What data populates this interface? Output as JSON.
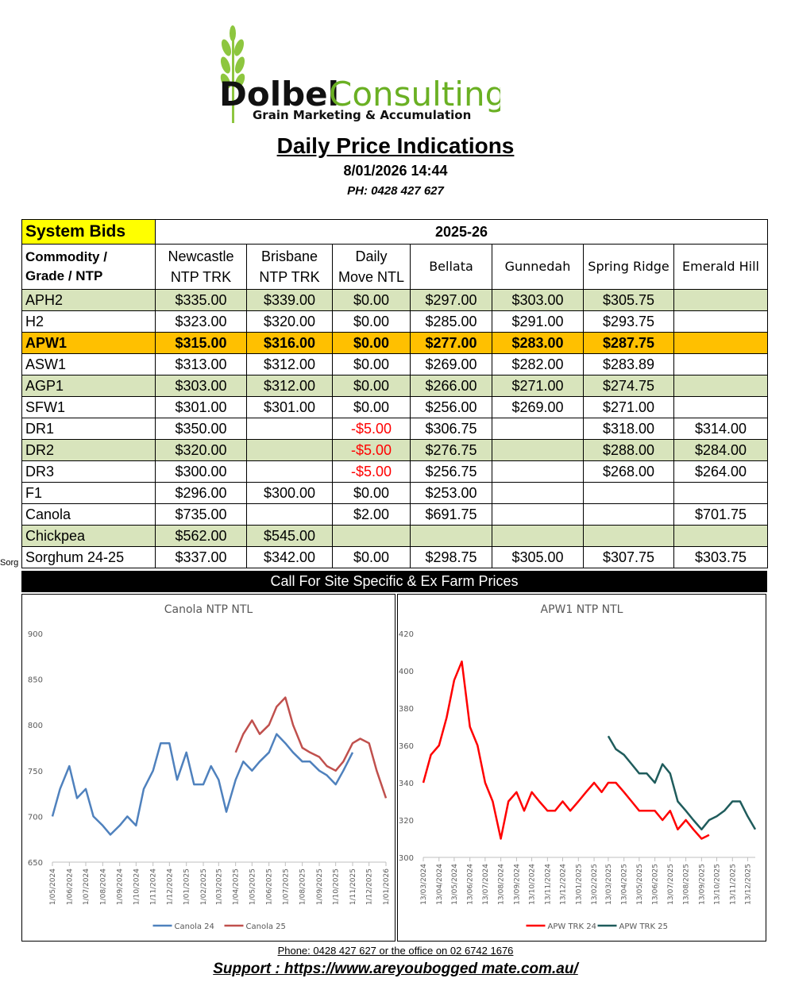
{
  "header": {
    "brand_1": "Dolbel",
    "brand_2": "Consulting",
    "tagline": "Grain Marketing & Accumulation",
    "title": "Daily Price Indications",
    "date": "8/01/2026 14:44",
    "phone": "PH: 0428 427 627"
  },
  "table": {
    "corner": "System Bids",
    "season": "2025-26",
    "columns": [
      [
        "Commodity /",
        "Grade / NTP"
      ],
      [
        "Newcastle",
        "NTP TRK"
      ],
      [
        "Brisbane",
        "NTP TRK"
      ],
      [
        "Daily",
        "Move NTL"
      ],
      [
        "Bellata"
      ],
      [
        "Gunnedah"
      ],
      [
        "Spring Ridge"
      ],
      [
        "Emerald Hill"
      ]
    ],
    "rows": [
      [
        "APH2",
        "$335.00",
        "$339.00",
        "$0.00",
        "$297.00",
        "$303.00",
        "$305.75",
        null
      ],
      [
        "H2",
        "$323.00",
        "$320.00",
        "$0.00",
        "$285.00",
        "$291.00",
        "$293.75",
        null
      ],
      [
        "APW1",
        "$315.00",
        "$316.00",
        "$0.00",
        "$277.00",
        "$283.00",
        "$287.75",
        null
      ],
      [
        "ASW1",
        "$313.00",
        "$312.00",
        "$0.00",
        "$269.00",
        "$282.00",
        "$283.89",
        null
      ],
      [
        "AGP1",
        "$303.00",
        "$312.00",
        "$0.00",
        "$266.00",
        "$271.00",
        "$274.75",
        null
      ],
      [
        "SFW1",
        "$301.00",
        "$301.00",
        "$0.00",
        "$256.00",
        "$269.00",
        "$271.00",
        null
      ],
      [
        "DR1",
        "$350.00",
        null,
        "-$5.00",
        "$306.75",
        null,
        "$318.00",
        "$314.00"
      ],
      [
        "DR2",
        "$320.00",
        null,
        "-$5.00",
        "$276.75",
        null,
        "$288.00",
        "$284.00"
      ],
      [
        "DR3",
        "$300.00",
        null,
        "-$5.00",
        "$256.75",
        null,
        "$268.00",
        "$264.00"
      ],
      [
        "F1",
        "$296.00",
        "$300.00",
        "$0.00",
        "$253.00",
        null,
        null,
        null
      ],
      [
        "Canola",
        "$735.00",
        null,
        "$2.00",
        "$691.75",
        null,
        null,
        "$701.75"
      ],
      [
        "Chickpea",
        "$562.00",
        "$545.00",
        null,
        null,
        null,
        null,
        null
      ],
      [
        "Sorghum 24-25",
        "$337.00",
        "$342.00",
        "$0.00",
        "$298.75",
        "$305.00",
        "$307.75",
        "$303.75"
      ]
    ],
    "stray_label": "Sorg",
    "banner": "Call For Site Specific & Ex Farm Prices"
  },
  "chart_data": [
    {
      "type": "line",
      "title": "Canola NTP NTL",
      "x": [
        "1/05/2024",
        "15/05/2024",
        "1/06/2024",
        "15/06/2024",
        "1/07/2024",
        "15/07/2024",
        "1/08/2024",
        "15/08/2024",
        "1/09/2024",
        "15/09/2024",
        "1/10/2024",
        "15/10/2024",
        "1/11/2024",
        "15/11/2024",
        "1/12/2024",
        "15/12/2024",
        "1/01/2025",
        "15/01/2025",
        "1/02/2025",
        "15/02/2025",
        "1/03/2025",
        "15/03/2025",
        "1/04/2025",
        "15/04/2025",
        "1/05/2025",
        "15/05/2025",
        "1/06/2025",
        "15/06/2025",
        "1/07/2025",
        "15/07/2025",
        "1/08/2025",
        "15/08/2025",
        "1/09/2025",
        "15/09/2025",
        "1/10/2025",
        "15/10/2025",
        "1/11/2025",
        "15/11/2025",
        "1/12/2025",
        "15/12/2025",
        "1/01/2026"
      ],
      "series": [
        {
          "name": "Canola 24",
          "color": "#4f81bd",
          "values": [
            700,
            730,
            755,
            720,
            730,
            700,
            690,
            680,
            690,
            700,
            690,
            730,
            750,
            780,
            780,
            740,
            770,
            735,
            735,
            755,
            740,
            705,
            740,
            760,
            750,
            760,
            770,
            790,
            780,
            770,
            760,
            760,
            750,
            745,
            735,
            750,
            770,
            null,
            null,
            null,
            null
          ]
        },
        {
          "name": "Canola 25",
          "color": "#c0504d",
          "values": [
            null,
            null,
            null,
            null,
            null,
            null,
            null,
            null,
            null,
            null,
            null,
            null,
            null,
            null,
            null,
            null,
            null,
            null,
            null,
            null,
            null,
            null,
            770,
            790,
            805,
            790,
            800,
            820,
            830,
            800,
            775,
            770,
            765,
            755,
            750,
            760,
            780,
            785,
            780,
            750,
            720
          ]
        }
      ],
      "xlim": [
        "1/05/2024",
        "1/01/2026"
      ],
      "xticks": [
        "1/05/2024",
        "1/06/2024",
        "1/07/2024",
        "1/08/2024",
        "1/09/2024",
        "1/10/2024",
        "1/11/2024",
        "1/12/2024",
        "1/01/2025",
        "1/02/2025",
        "1/03/2025",
        "1/04/2025",
        "1/05/2025",
        "1/06/2025",
        "1/07/2025",
        "1/08/2025",
        "1/09/2025",
        "1/10/2025",
        "1/11/2025",
        "1/12/2025",
        "1/01/2026"
      ],
      "ylim": [
        650,
        900
      ],
      "yticks": [
        650,
        700,
        750,
        800,
        850,
        900
      ],
      "legend": "bottom"
    },
    {
      "type": "line",
      "title": "APW1 NTP NTL",
      "x": [
        "13/03/2024",
        "28/03/2024",
        "13/04/2024",
        "28/04/2024",
        "13/05/2024",
        "28/05/2024",
        "13/06/2024",
        "28/06/2024",
        "13/07/2024",
        "28/07/2024",
        "13/08/2024",
        "28/08/2024",
        "13/09/2024",
        "28/09/2024",
        "13/10/2024",
        "28/10/2024",
        "13/11/2024",
        "28/11/2024",
        "13/12/2024",
        "28/12/2024",
        "13/01/2025",
        "28/01/2025",
        "13/02/2025",
        "28/02/2025",
        "13/03/2025",
        "28/03/2025",
        "13/04/2025",
        "28/04/2025",
        "13/05/2025",
        "28/05/2025",
        "13/06/2025",
        "28/06/2025",
        "13/07/2025",
        "28/07/2025",
        "13/08/2025",
        "28/08/2025",
        "13/09/2025",
        "28/09/2025",
        "13/10/2025",
        "28/10/2025",
        "13/11/2025",
        "28/11/2025",
        "13/12/2025",
        "28/12/2025"
      ],
      "series": [
        {
          "name": "APW TRK 24",
          "color": "#ff0000",
          "values": [
            340,
            355,
            360,
            375,
            395,
            405,
            370,
            360,
            340,
            330,
            310,
            330,
            335,
            325,
            335,
            330,
            325,
            325,
            330,
            325,
            330,
            335,
            340,
            335,
            340,
            340,
            335,
            330,
            325,
            325,
            325,
            320,
            325,
            315,
            320,
            315,
            310,
            312,
            null,
            null,
            null,
            null,
            null,
            null
          ]
        },
        {
          "name": "APW TRK 25",
          "color": "#1f5c5c",
          "values": [
            null,
            null,
            null,
            null,
            null,
            null,
            null,
            null,
            null,
            null,
            null,
            null,
            null,
            null,
            null,
            null,
            null,
            null,
            null,
            null,
            null,
            null,
            null,
            null,
            365,
            358,
            355,
            350,
            345,
            345,
            340,
            350,
            345,
            330,
            325,
            320,
            315,
            320,
            322,
            325,
            330,
            330,
            322,
            315
          ]
        }
      ],
      "xlim": [
        "13/03/2024",
        "28/12/2025"
      ],
      "xticks": [
        "13/03/2024",
        "13/04/2024",
        "13/05/2024",
        "13/06/2024",
        "13/07/2024",
        "13/08/2024",
        "13/09/2024",
        "13/10/2024",
        "13/11/2024",
        "13/12/2024",
        "13/01/2025",
        "13/02/2025",
        "13/03/2025",
        "13/04/2025",
        "13/05/2025",
        "13/06/2025",
        "13/07/2025",
        "13/08/2025",
        "13/09/2025",
        "13/10/2025",
        "13/11/2025",
        "13/12/2025"
      ],
      "ylim": [
        300,
        420
      ],
      "yticks": [
        300,
        320,
        340,
        360,
        380,
        400,
        420
      ],
      "legend": "bottom"
    }
  ],
  "footer": {
    "contact": "Phone: 0428 427 627 or the office on 02 6742 1676",
    "support": "Support : https://www.areyoubogged mate.com.au/"
  }
}
